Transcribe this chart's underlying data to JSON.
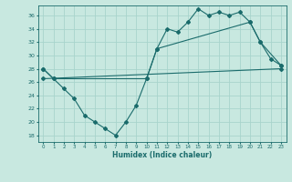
{
  "title": "",
  "xlabel": "Humidex (Indice chaleur)",
  "xlim": [
    -0.5,
    23.5
  ],
  "ylim": [
    17,
    37.5
  ],
  "yticks": [
    18,
    20,
    22,
    24,
    26,
    28,
    30,
    32,
    34,
    36
  ],
  "xticks": [
    0,
    1,
    2,
    3,
    4,
    5,
    6,
    7,
    8,
    9,
    10,
    11,
    12,
    13,
    14,
    15,
    16,
    17,
    18,
    19,
    20,
    21,
    22,
    23
  ],
  "background_color": "#c8e8e0",
  "grid_color": "#a8d4cc",
  "line_color": "#1a6b6b",
  "line1_x": [
    0,
    1,
    2,
    3,
    4,
    5,
    6,
    7,
    8,
    9,
    10,
    11,
    12,
    13,
    14,
    15,
    16,
    17,
    18,
    19,
    20,
    21,
    22,
    23
  ],
  "line1_y": [
    28,
    26.5,
    25.0,
    23.5,
    21.0,
    20.0,
    19.0,
    18.0,
    20.0,
    22.5,
    26.5,
    31.0,
    34.0,
    33.5,
    35.0,
    37.0,
    36.0,
    36.5,
    36.0,
    36.5,
    35.0,
    32.0,
    29.5,
    28.5
  ],
  "line2_x": [
    0,
    1,
    10,
    11,
    20,
    21,
    23
  ],
  "line2_y": [
    28,
    26.5,
    26.5,
    31.0,
    35.0,
    32.0,
    28.5
  ],
  "line3_x": [
    0,
    23
  ],
  "line3_y": [
    26.5,
    28.0
  ],
  "figsize": [
    3.2,
    2.0
  ],
  "dpi": 100
}
